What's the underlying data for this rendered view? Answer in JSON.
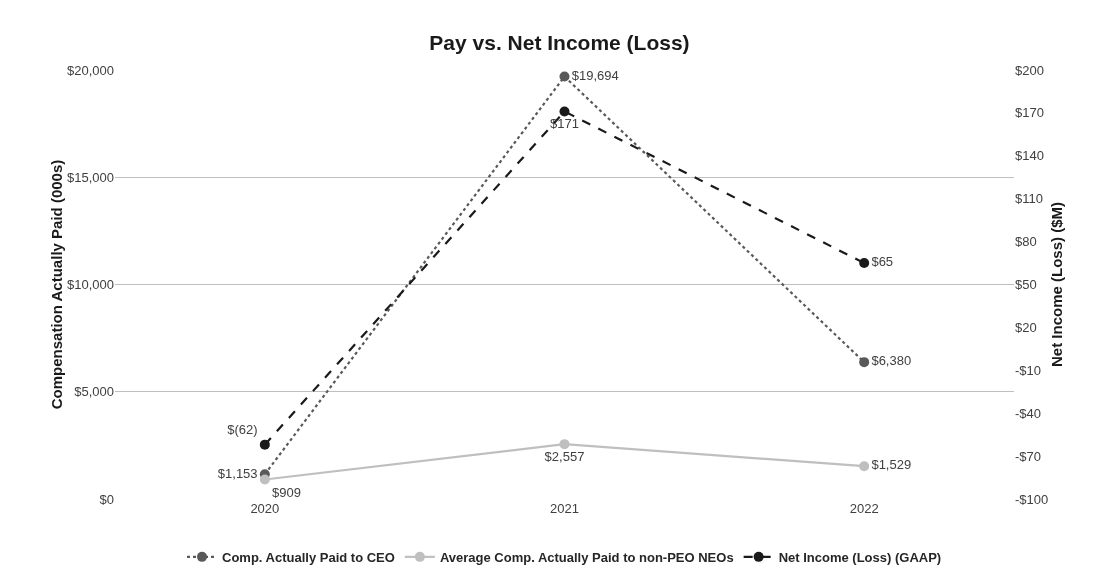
{
  "chart_data": {
    "type": "line",
    "title": "Pay vs. Net Income (Loss)",
    "ylabel": "Compensation Actually Paid (000s)",
    "y2label": "Net Income (Loss) ($M)",
    "categories": [
      "2020",
      "2021",
      "2022"
    ],
    "series": [
      {
        "name": "Comp. Actually Paid to CEO",
        "color": "#595959",
        "values": [
          1153,
          19694,
          6380
        ],
        "value_labels": [
          "$1,153",
          "$19,694",
          "$6,380"
        ],
        "line_style": "dotted"
      },
      {
        "name": "Average Comp. Actually Paid to non-PEO NEOs",
        "color": "#bfbfbf",
        "values": [
          909,
          2557,
          1529
        ],
        "value_labels": [
          "$909",
          "$2,557",
          "$1,529"
        ],
        "line_style": "solid"
      },
      {
        "name": "Net Income (Loss) (GAAP)",
        "color": "#1a1a1a",
        "values": [
          -62,
          171,
          65
        ],
        "value_labels": [
          "$(62)",
          "$171",
          "$65"
        ],
        "line_style": "dashed",
        "axis": "y2"
      }
    ],
    "ylim": [
      0,
      20000
    ],
    "yticks": [
      {
        "value": 0,
        "label": "$0"
      },
      {
        "value": 5000,
        "label": "$5,000"
      },
      {
        "value": 10000,
        "label": "$10,000"
      },
      {
        "value": 15000,
        "label": "$15,000"
      },
      {
        "value": 20000,
        "label": "$20,000"
      }
    ],
    "y2lim": [
      -100,
      200
    ],
    "y2ticks": [
      {
        "value": -100,
        "label": "-$100"
      },
      {
        "value": -70,
        "label": "-$70"
      },
      {
        "value": -40,
        "label": "-$40"
      },
      {
        "value": -10,
        "label": "-$10"
      },
      {
        "value": 20,
        "label": "$20"
      },
      {
        "value": 50,
        "label": "$50"
      },
      {
        "value": 80,
        "label": "$80"
      },
      {
        "value": 110,
        "label": "$110"
      },
      {
        "value": 140,
        "label": "$140"
      },
      {
        "value": 170,
        "label": "$170"
      },
      {
        "value": 200,
        "label": "$200"
      }
    ],
    "grid": "y",
    "legend": "bottom",
    "marker": "circle"
  }
}
